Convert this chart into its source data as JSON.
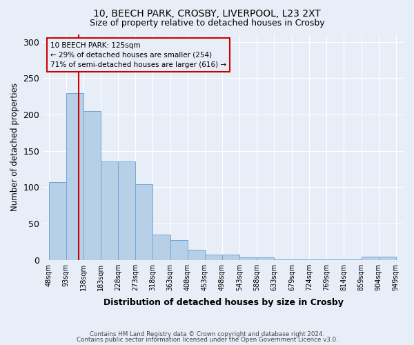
{
  "title1": "10, BEECH PARK, CROSBY, LIVERPOOL, L23 2XT",
  "title2": "Size of property relative to detached houses in Crosby",
  "xlabel": "Distribution of detached houses by size in Crosby",
  "ylabel": "Number of detached properties",
  "footer1": "Contains HM Land Registry data © Crown copyright and database right 2024.",
  "footer2": "Contains public sector information licensed under the Open Government Licence v3.0.",
  "annotation_line1": "10 BEECH PARK: 125sqm",
  "annotation_line2": "← 29% of detached houses are smaller (254)",
  "annotation_line3": "71% of semi-detached houses are larger (616) →",
  "property_size": 125,
  "bar_edges": [
    48,
    93,
    138,
    183,
    228,
    273,
    318,
    363,
    408,
    453,
    498,
    543,
    588,
    633,
    679,
    724,
    769,
    814,
    859,
    904,
    949
  ],
  "bar_heights": [
    107,
    229,
    205,
    135,
    135,
    104,
    35,
    27,
    14,
    7,
    7,
    3,
    3,
    1,
    1,
    1,
    1,
    1,
    4,
    4
  ],
  "bar_color": "#b8cfe8",
  "bar_edge_color": "#6fa8d6",
  "red_line_color": "#cc0000",
  "background_color": "#e8eef7",
  "grid_color": "#ffffff",
  "ylim": [
    0,
    310
  ],
  "tick_labels": [
    "48sqm",
    "93sqm",
    "138sqm",
    "183sqm",
    "228sqm",
    "273sqm",
    "318sqm",
    "363sqm",
    "408sqm",
    "453sqm",
    "498sqm",
    "543sqm",
    "588sqm",
    "633sqm",
    "679sqm",
    "724sqm",
    "769sqm",
    "814sqm",
    "859sqm",
    "904sqm",
    "949sqm"
  ]
}
